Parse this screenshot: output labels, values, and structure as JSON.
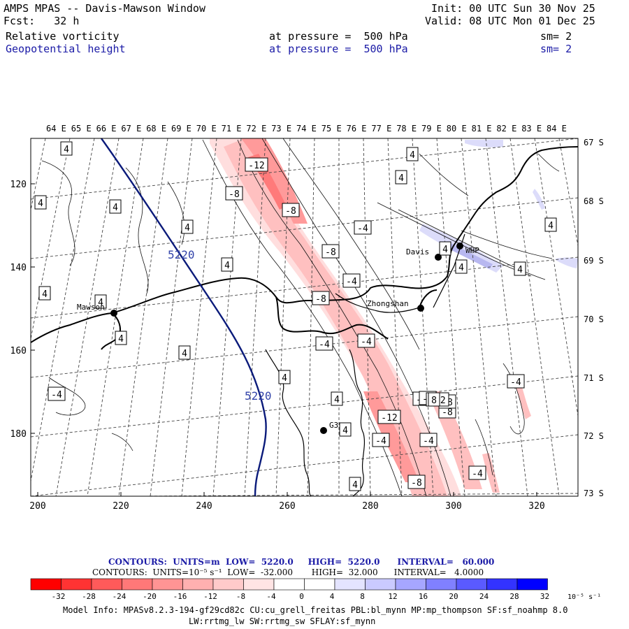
{
  "header": {
    "title": "AMPS MPAS -- Davis-Mawson Window",
    "forecast": "Fcst:   32 h",
    "init": "Init: 00 UTC Sun 30 Nov 25",
    "valid": "Valid: 08 UTC Mon 01 Dec 25",
    "field1_name": "Relative vorticity",
    "field1_level": "at pressure =  500 hPa",
    "field1_sm": "sm= 2",
    "field2_name": "Geopotential height",
    "field2_level": "at pressure =  500 hPa",
    "field2_sm": "sm= 2"
  },
  "map": {
    "top_longitudes": [
      "64 E",
      "65 E",
      "66 E",
      "67 E",
      "68 E",
      "69 E",
      "70 E",
      "71 E",
      "72 E",
      "73 E",
      "74 E",
      "75 E",
      "76 E",
      "77 E",
      "78 E",
      "79 E",
      "80 E",
      "81 E",
      "82 E",
      "83 E",
      "84 E"
    ],
    "right_latitudes": [
      "67 S",
      "68 S",
      "69 S",
      "70 S",
      "71 S",
      "72 S",
      "73 S"
    ],
    "left_ticks": [
      "120",
      "140",
      "160",
      "180"
    ],
    "bottom_ticks": [
      "200",
      "220",
      "240",
      "260",
      "280",
      "300",
      "320"
    ],
    "stations": [
      {
        "name": "Mawson"
      },
      {
        "name": "Davis"
      },
      {
        "name": "WHP"
      },
      {
        "name": "Zhongshan"
      },
      {
        "name": "G3"
      }
    ],
    "height_labels": [
      "5220",
      "5220"
    ],
    "vorticity_labels": [
      "4",
      "4",
      "4",
      "4",
      "4",
      "4",
      "4",
      "4",
      "4",
      "4",
      "4",
      "4",
      "4",
      "4",
      "4",
      "4",
      "4",
      "4",
      "4",
      "-4",
      "-4",
      "-4",
      "-4",
      "-4",
      "-4",
      "-4",
      "-4",
      "-4",
      "-4",
      "-8",
      "-8",
      "-8",
      "-8",
      "-8",
      "-8",
      "-8",
      "-8",
      "-12",
      "-12",
      "-12",
      "8"
    ]
  },
  "footer": {
    "contours1": "CONTOURS:  UNITS=m  LOW=  5220.0     HIGH=  5220.0      INTERVAL=   60.000",
    "contours2": "CONTOURS:  UNITS=10⁻⁵ s⁻¹  LOW=  -32.000       HIGH=  32.000      INTERVAL=   4.0000",
    "colorbar_values": [
      "-32",
      "-28",
      "-24",
      "-20",
      "-16",
      "-12",
      "-8",
      "-4",
      "0",
      "4",
      "8",
      "12",
      "16",
      "20",
      "24",
      "28",
      "32"
    ],
    "colorbar_unit": "10⁻⁵ s⁻¹",
    "colorbar_colors": [
      "#ff0000",
      "#ff3333",
      "#ff5a5a",
      "#ff7878",
      "#ff9494",
      "#ffb0b0",
      "#ffcaca",
      "#ffe4e4",
      "#ffffff",
      "#ffffff",
      "#e4e4ff",
      "#cacaff",
      "#a6a6ff",
      "#8080ff",
      "#5a5aff",
      "#3333ff",
      "#0000ff"
    ],
    "model_info": "Model Info: MPASv8.2.3-194-gf29cd82c CU:cu_grell_freitas PBL:bl_mynn MP:mp_thompson SF:sf_noahmp 8.0",
    "model_info2": "LW:rrtmg_lw SW:rrtmg_sw SFLAY:sf_mynn"
  },
  "colors": {
    "height_contour": "#0a1a7a",
    "negative_fill": "#ff8a8a",
    "positive_fill": "#c8c8f5"
  }
}
